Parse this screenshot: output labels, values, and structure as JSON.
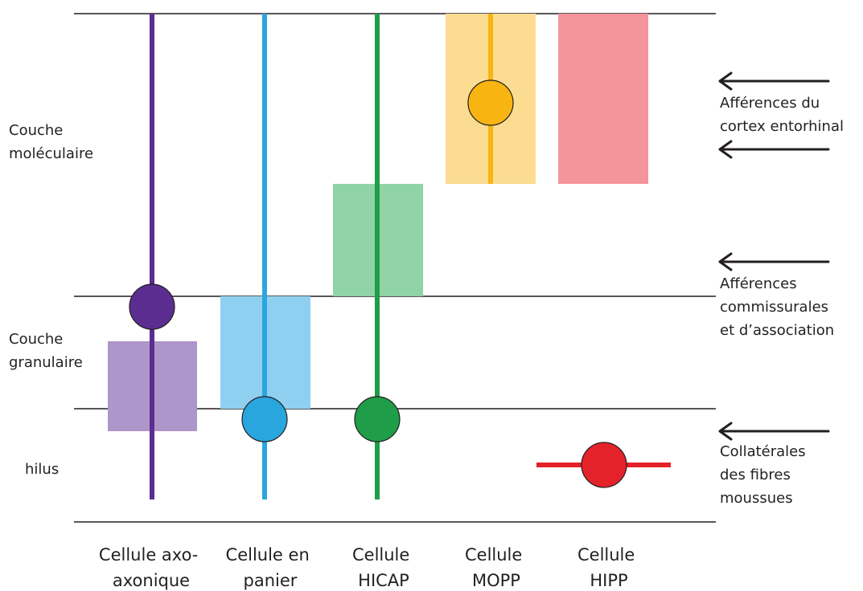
{
  "layers": {
    "molecular": [
      "Couche",
      "moléculaire"
    ],
    "granular": [
      "Couche",
      "granulaire"
    ],
    "hilus": [
      "hilus"
    ]
  },
  "afferents": {
    "entorhinal": [
      "Afférences du",
      "cortex entorhinal"
    ],
    "commissural": [
      "Afférences",
      "commissurales",
      "et d’association"
    ],
    "mossy": [
      "Collatérales",
      "des fibres",
      "moussues"
    ]
  },
  "cells": [
    {
      "id": "axo-axonic",
      "label": [
        "Cellule axo-",
        "axonique"
      ],
      "color": "#5b2d91",
      "fill": "#ad96c9"
    },
    {
      "id": "basket",
      "label": [
        "Cellule en",
        "panier"
      ],
      "color": "#2aa6df",
      "fill": "#8fd0f0"
    },
    {
      "id": "hicap",
      "label": [
        "Cellule",
        "HICAP"
      ],
      "color": "#1f9d48",
      "fill": "#8fd3a6"
    },
    {
      "id": "mopp",
      "label": [
        "Cellule",
        "MOPP"
      ],
      "color": "#f8b512",
      "fill": "#fbdc91"
    },
    {
      "id": "hipp",
      "label": [
        "Cellule",
        "HIPP"
      ],
      "color": "#e42229",
      "fill": "#f4949b"
    }
  ]
}
